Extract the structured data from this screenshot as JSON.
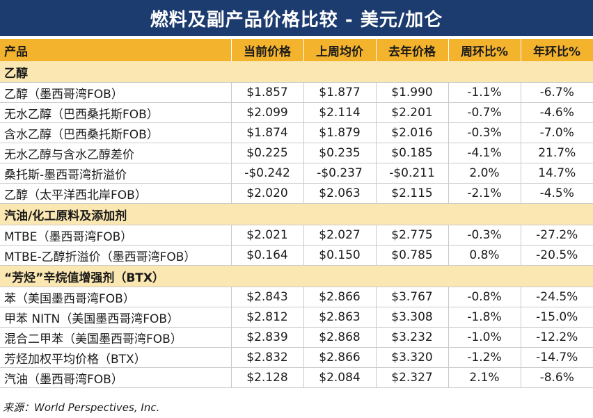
{
  "title": "燃料及副产品价格比较 - 美元/加仑",
  "headers": [
    "产品",
    "当前价格",
    "上周均价",
    "去年价格",
    "周环比%",
    "年环比%"
  ],
  "sections": [
    {
      "name": "乙醇",
      "rows": [
        [
          "乙醇（墨西哥湾FOB）",
          "$1.857",
          "$1.877",
          "$1.990",
          "-1.1%",
          "-6.7%"
        ],
        [
          "无水乙醇（巴西桑托斯FOB）",
          "$2.099",
          "$2.114",
          "$2.201",
          "-0.7%",
          "-4.6%"
        ],
        [
          "含水乙醇（巴西桑托斯FOB）",
          "$1.874",
          "$1.879",
          "$2.016",
          "-0.3%",
          "-7.0%"
        ],
        [
          "无水乙醇与含水乙醇差价",
          "$0.225",
          "$0.235",
          "$0.185",
          "-4.1%",
          "21.7%"
        ],
        [
          "桑托斯-墨西哥湾折溢价",
          "-$0.242",
          "-$0.237",
          "-$0.211",
          "2.0%",
          "14.7%"
        ],
        [
          "乙醇（太平洋西北岸FOB）",
          "$2.020",
          "$2.063",
          "$2.115",
          "-2.1%",
          "-4.5%"
        ]
      ]
    },
    {
      "name": "汽油/化工原料及添加剂",
      "rows": [
        [
          "MTBE（墨西哥湾FOB）",
          "$2.021",
          "$2.027",
          "$2.775",
          "-0.3%",
          "-27.2%"
        ],
        [
          "MTBE-乙醇折溢价（墨西哥湾FOB）",
          "$0.164",
          "$0.150",
          "$0.785",
          "0.8%",
          "-20.5%"
        ]
      ]
    },
    {
      "name": "“芳烃”辛烷值增强剂（BTX）",
      "rows": [
        [
          "苯（美国墨西哥湾FOB）",
          "$2.843",
          "$2.866",
          "$3.767",
          "-0.8%",
          "-24.5%"
        ],
        [
          "甲苯 NITN（美国墨西哥湾FOB）",
          "$2.812",
          "$2.863",
          "$3.308",
          "-1.8%",
          "-15.0%"
        ],
        [
          "混合二甲苯（美国墨西哥湾FOB）",
          "$2.839",
          "$2.868",
          "$3.232",
          "-1.0%",
          "-12.2%"
        ],
        [
          "芳烃加权平均价格（BTX）",
          "$2.832",
          "$2.866",
          "$3.320",
          "-1.2%",
          "-14.7%"
        ],
        [
          "汽油（墨西哥湾FOB）",
          "$2.128",
          "$2.084",
          "$2.327",
          "2.1%",
          "-8.6%"
        ]
      ]
    }
  ],
  "source": "来源：World Perspectives, Inc."
}
